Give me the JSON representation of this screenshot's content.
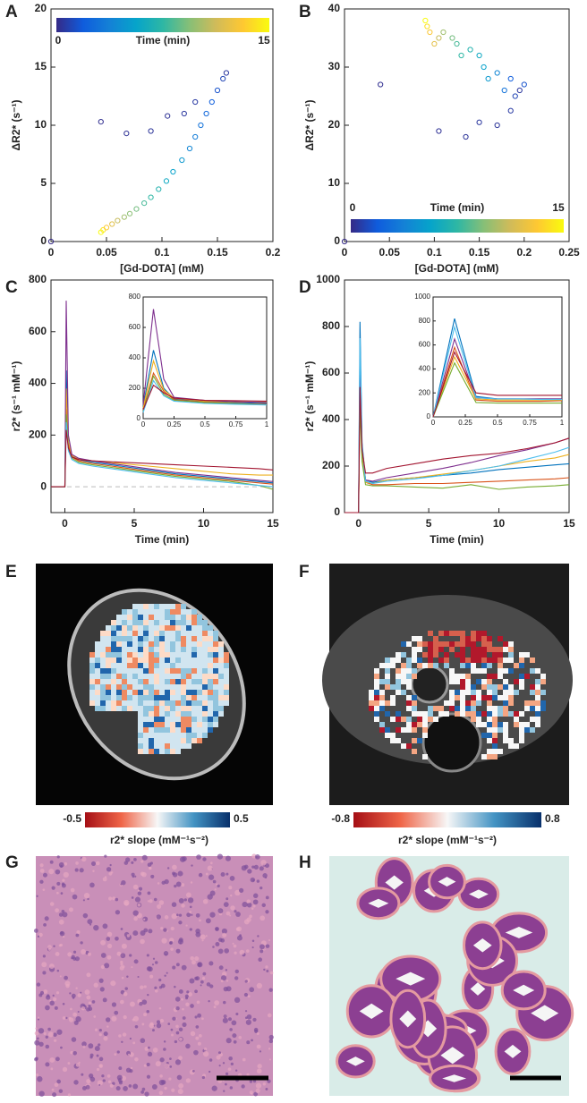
{
  "panels": [
    "A",
    "B",
    "C",
    "D",
    "E",
    "F",
    "G",
    "H"
  ],
  "chart_data": [
    {
      "type": "scatter",
      "xlabel": "[Gd-DOTA] (mM)",
      "ylabel": "ΔR2* (s⁻¹)",
      "xlim": [
        0,
        0.2
      ],
      "xticks": [
        0,
        0.05,
        0.1,
        0.15,
        0.2
      ],
      "ylim": [
        0,
        20
      ],
      "yticks": [
        0,
        5,
        10,
        15,
        20
      ],
      "x": [
        0,
        0.045,
        0.068,
        0.09,
        0.105,
        0.12,
        0.13,
        0.158,
        0.155,
        0.15,
        0.145,
        0.14,
        0.135,
        0.13,
        0.125,
        0.118,
        0.11,
        0.104,
        0.097,
        0.09,
        0.084,
        0.077,
        0.071,
        0.066,
        0.06,
        0.055,
        0.05,
        0.047,
        0.045
      ],
      "y": [
        0,
        10.3,
        9.3,
        9.5,
        10.8,
        11,
        12,
        14.5,
        14,
        13,
        12,
        11,
        10,
        9,
        8,
        7,
        6,
        5.2,
        4.5,
        3.8,
        3.3,
        2.8,
        2.4,
        2.1,
        1.8,
        1.5,
        1.2,
        1,
        0.8
      ],
      "time": [
        0,
        0.2,
        0.3,
        0.4,
        0.3,
        0.5,
        0.6,
        0.5,
        1,
        1.5,
        2,
        2.5,
        3,
        3.5,
        4,
        5,
        5.5,
        6,
        7,
        7.5,
        8,
        9,
        9.5,
        10,
        11,
        12,
        13,
        14,
        15
      ],
      "clim": [
        0,
        15
      ],
      "colorbar_ticks": [
        0,
        15
      ],
      "colorbar_label": "Time (min)",
      "colormap": [
        "#352a87",
        "#0f5cdd",
        "#1481d6",
        "#06a4ca",
        "#2eb7a4",
        "#87bf77",
        "#d1bb59",
        "#fec832",
        "#f9fb0e"
      ]
    },
    {
      "type": "scatter",
      "xlabel": "[Gd-DOTA] (mM)",
      "ylabel": "ΔR2* (s⁻¹)",
      "xlim": [
        0,
        0.25
      ],
      "xticks": [
        0,
        0.05,
        0.1,
        0.15,
        0.2,
        0.25
      ],
      "ylim": [
        0,
        40
      ],
      "yticks": [
        0,
        10,
        20,
        30,
        40
      ],
      "x": [
        0,
        0.04,
        0.105,
        0.135,
        0.15,
        0.17,
        0.185,
        0.195,
        0.19,
        0.2,
        0.185,
        0.178,
        0.17,
        0.16,
        0.155,
        0.15,
        0.14,
        0.13,
        0.125,
        0.12,
        0.11,
        0.105,
        0.1,
        0.095,
        0.092,
        0.09
      ],
      "y": [
        0,
        27,
        19,
        18,
        20.5,
        20,
        22.5,
        26,
        25,
        27,
        28,
        26,
        29,
        28,
        30,
        32,
        33,
        32,
        34,
        35,
        36,
        35,
        34,
        36,
        37,
        38
      ],
      "time": [
        0,
        0.2,
        0.3,
        0.4,
        0.5,
        0.4,
        0.6,
        0.5,
        1,
        1.5,
        2,
        3,
        4,
        5,
        5.5,
        6,
        7,
        7.5,
        8,
        9,
        10,
        11,
        12,
        13,
        14,
        15
      ],
      "clim": [
        0,
        15
      ],
      "colorbar_ticks": [
        0,
        15
      ],
      "colorbar_label": "Time (min)",
      "colormap": [
        "#352a87",
        "#0f5cdd",
        "#1481d6",
        "#06a4ca",
        "#2eb7a4",
        "#87bf77",
        "#d1bb59",
        "#fec832",
        "#f9fb0e"
      ]
    },
    {
      "type": "line",
      "xlabel": "Time (min)",
      "ylabel": "r2* (s⁻¹ mM⁻¹)",
      "xlim": [
        -1,
        15
      ],
      "xticks": [
        0,
        5,
        10,
        15
      ],
      "ylim": [
        -100,
        800
      ],
      "yticks": [
        0,
        200,
        400,
        600,
        800
      ],
      "hline": 0,
      "x": [
        -1,
        0,
        0.1,
        0.25,
        0.5,
        1,
        2,
        4,
        6,
        8,
        10,
        12,
        14,
        15
      ],
      "series": [
        {
          "color": "#0072bd",
          "values": [
            0,
            0,
            450,
            170,
            120,
            105,
            95,
            80,
            65,
            50,
            40,
            30,
            20,
            15
          ]
        },
        {
          "color": "#d95319",
          "values": [
            0,
            0,
            300,
            160,
            115,
            100,
            90,
            75,
            60,
            45,
            35,
            25,
            15,
            10
          ]
        },
        {
          "color": "#edb120",
          "values": [
            0,
            0,
            380,
            175,
            120,
            108,
            100,
            90,
            80,
            70,
            60,
            50,
            45,
            45
          ]
        },
        {
          "color": "#7e2f8e",
          "values": [
            0,
            0,
            720,
            200,
            125,
            110,
            100,
            85,
            70,
            55,
            45,
            35,
            25,
            20
          ]
        },
        {
          "color": "#77ac30",
          "values": [
            0,
            0,
            280,
            150,
            110,
            95,
            85,
            70,
            55,
            40,
            30,
            20,
            5,
            -10
          ]
        },
        {
          "color": "#4dbeee",
          "values": [
            0,
            0,
            250,
            140,
            105,
            90,
            80,
            65,
            50,
            35,
            25,
            15,
            5,
            0
          ]
        },
        {
          "color": "#a2142f",
          "values": [
            0,
            0,
            220,
            150,
            115,
            105,
            100,
            95,
            90,
            85,
            80,
            75,
            70,
            65
          ]
        }
      ]
    },
    {
      "type": "line",
      "xlim": [
        0,
        1
      ],
      "xticks": [
        0,
        0.25,
        0.5,
        0.75,
        1
      ],
      "ylim": [
        0,
        800
      ],
      "yticks": [
        0,
        200,
        400,
        600,
        800
      ],
      "x": [
        0,
        0.083,
        0.167,
        0.25,
        0.5,
        0.75,
        1
      ],
      "series": [
        {
          "color": "#0072bd",
          "values": [
            80,
            450,
            200,
            130,
            110,
            105,
            100
          ]
        },
        {
          "color": "#d95319",
          "values": [
            60,
            300,
            180,
            125,
            108,
            100,
            95
          ]
        },
        {
          "color": "#edb120",
          "values": [
            70,
            380,
            190,
            135,
            115,
            110,
            108
          ]
        },
        {
          "color": "#7e2f8e",
          "values": [
            90,
            720,
            260,
            140,
            120,
            112,
            105
          ]
        },
        {
          "color": "#77ac30",
          "values": [
            50,
            280,
            160,
            120,
            105,
            98,
            92
          ]
        },
        {
          "color": "#4dbeee",
          "values": [
            40,
            250,
            150,
            115,
            100,
            95,
            90
          ]
        },
        {
          "color": "#a2142f",
          "values": [
            60,
            220,
            170,
            135,
            120,
            118,
            115
          ]
        }
      ]
    },
    {
      "type": "line",
      "xlabel": "Time (min)",
      "ylabel": "r2* (s⁻¹ mM⁻¹)",
      "xlim": [
        -1,
        15
      ],
      "xticks": [
        0,
        5,
        10,
        15
      ],
      "ylim": [
        0,
        1000
      ],
      "yticks": [
        0,
        200,
        400,
        600,
        800,
        1000
      ],
      "x": [
        -1,
        0,
        0.1,
        0.25,
        0.5,
        1,
        2,
        4,
        6,
        8,
        10,
        12,
        14,
        15
      ],
      "series": [
        {
          "color": "#0072bd",
          "values": [
            0,
            0,
            820,
            300,
            140,
            130,
            140,
            150,
            160,
            170,
            185,
            195,
            205,
            210
          ]
        },
        {
          "color": "#d95319",
          "values": [
            0,
            0,
            580,
            260,
            130,
            120,
            120,
            125,
            125,
            130,
            135,
            140,
            145,
            150
          ]
        },
        {
          "color": "#edb120",
          "values": [
            0,
            0,
            500,
            240,
            130,
            125,
            140,
            150,
            165,
            180,
            200,
            220,
            235,
            250
          ]
        },
        {
          "color": "#7e2f8e",
          "values": [
            0,
            0,
            650,
            280,
            140,
            135,
            150,
            170,
            190,
            215,
            245,
            270,
            300,
            320
          ]
        },
        {
          "color": "#77ac30",
          "values": [
            0,
            0,
            450,
            220,
            120,
            115,
            115,
            110,
            105,
            120,
            100,
            110,
            115,
            120
          ]
        },
        {
          "color": "#4dbeee",
          "values": [
            0,
            0,
            750,
            290,
            135,
            125,
            135,
            145,
            160,
            180,
            200,
            230,
            260,
            280
          ]
        },
        {
          "color": "#a2142f",
          "values": [
            0,
            0,
            540,
            270,
            170,
            170,
            190,
            210,
            230,
            245,
            255,
            275,
            300,
            320
          ]
        }
      ]
    },
    {
      "type": "line",
      "xlim": [
        0,
        1
      ],
      "xticks": [
        0,
        0.25,
        0.5,
        0.75,
        1
      ],
      "ylim": [
        0,
        1000
      ],
      "yticks": [
        0,
        200,
        400,
        600,
        800,
        1000
      ],
      "x": [
        0,
        0.167,
        0.333,
        0.5,
        0.667,
        0.833,
        1
      ],
      "series": [
        {
          "color": "#0072bd",
          "values": [
            0,
            820,
            170,
            150,
            150,
            150,
            150
          ]
        },
        {
          "color": "#d95319",
          "values": [
            0,
            580,
            140,
            130,
            130,
            130,
            135
          ]
        },
        {
          "color": "#edb120",
          "values": [
            0,
            500,
            150,
            140,
            140,
            140,
            140
          ]
        },
        {
          "color": "#7e2f8e",
          "values": [
            0,
            650,
            160,
            150,
            150,
            150,
            150
          ]
        },
        {
          "color": "#77ac30",
          "values": [
            0,
            450,
            120,
            115,
            115,
            115,
            115
          ]
        },
        {
          "color": "#4dbeee",
          "values": [
            0,
            750,
            160,
            150,
            150,
            145,
            145
          ]
        },
        {
          "color": "#a2142f",
          "values": [
            0,
            540,
            200,
            180,
            180,
            180,
            180
          ]
        }
      ]
    }
  ],
  "maps": [
    {
      "colorbar_ticks": [
        -0.5,
        0.5
      ],
      "colorbar_label": "r2* slope (mM⁻¹s⁻²)"
    },
    {
      "colorbar_ticks": [
        -0.8,
        0.8
      ],
      "colorbar_label": "r2* slope (mM⁻¹s⁻²)"
    }
  ]
}
